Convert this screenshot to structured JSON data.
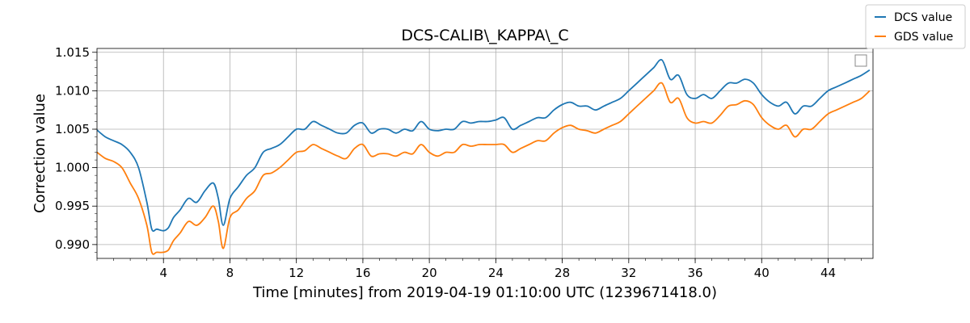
{
  "chart_data": {
    "type": "line",
    "title": "DCS-CALIB\\_KAPPA\\_C",
    "xlabel": "Time [minutes] from 2019-04-19 01:10:00 UTC (1239671418.0)",
    "ylabel": "Correction value",
    "xlim": [
      0,
      46.7
    ],
    "ylim": [
      0.9882,
      1.0155
    ],
    "xticks": [
      4,
      8,
      12,
      16,
      20,
      24,
      28,
      32,
      36,
      40,
      44
    ],
    "yticks": [
      0.99,
      0.995,
      1.0,
      1.005,
      1.01,
      1.015
    ],
    "ytick_labels": [
      "0.990",
      "0.995",
      "1.000",
      "1.005",
      "1.010",
      "1.015"
    ],
    "grid": true,
    "legend_position": "top-right (outside axes)",
    "x": [
      0,
      0.5,
      1,
      1.5,
      2,
      2.5,
      3,
      3.3,
      3.6,
      4,
      4.3,
      4.6,
      5,
      5.5,
      6,
      6.5,
      7,
      7.3,
      7.6,
      8,
      8.5,
      9,
      9.5,
      10,
      10.5,
      11,
      11.5,
      12,
      12.5,
      13,
      13.5,
      14,
      14.5,
      15,
      15.5,
      16,
      16.5,
      17,
      17.5,
      18,
      18.5,
      19,
      19.5,
      20,
      20.5,
      21,
      21.5,
      22,
      22.5,
      23,
      23.5,
      24,
      24.5,
      25,
      25.5,
      26,
      26.5,
      27,
      27.5,
      28,
      28.5,
      29,
      29.5,
      30,
      30.5,
      31,
      31.5,
      32,
      32.5,
      33,
      33.5,
      34,
      34.5,
      35,
      35.5,
      36,
      36.5,
      37,
      37.5,
      38,
      38.5,
      39,
      39.5,
      40,
      40.5,
      41,
      41.5,
      42,
      42.5,
      43,
      43.5,
      44,
      44.5,
      45,
      45.5,
      46,
      46.5
    ],
    "series": [
      {
        "name": "DCS value",
        "color": "#1f77b4",
        "values": [
          1.0049,
          1.004,
          1.0035,
          1.003,
          1.002,
          1.0,
          0.9955,
          0.992,
          0.992,
          0.9918,
          0.9922,
          0.9935,
          0.9945,
          0.996,
          0.9955,
          0.997,
          0.998,
          0.996,
          0.9925,
          0.996,
          0.9975,
          0.999,
          1.0,
          1.002,
          1.0025,
          1.003,
          1.004,
          1.005,
          1.005,
          1.006,
          1.0055,
          1.005,
          1.0045,
          1.0045,
          1.0055,
          1.0058,
          1.0045,
          1.005,
          1.005,
          1.0045,
          1.005,
          1.0048,
          1.006,
          1.005,
          1.0048,
          1.005,
          1.005,
          1.006,
          1.0058,
          1.006,
          1.006,
          1.0062,
          1.0065,
          1.005,
          1.0055,
          1.006,
          1.0065,
          1.0065,
          1.0075,
          1.0082,
          1.0085,
          1.008,
          1.008,
          1.0075,
          1.008,
          1.0085,
          1.009,
          1.01,
          1.011,
          1.012,
          1.013,
          1.014,
          1.0115,
          1.012,
          1.0095,
          1.009,
          1.0095,
          1.009,
          1.01,
          1.011,
          1.011,
          1.0115,
          1.011,
          1.0095,
          1.0085,
          1.008,
          1.0085,
          1.007,
          1.008,
          1.008,
          1.009,
          1.01,
          1.0105,
          1.011,
          1.0115,
          1.012,
          1.0127
        ]
      },
      {
        "name": "GDS value",
        "color": "#ff7f0e",
        "values": [
          1.002,
          1.0012,
          1.0008,
          1.0,
          0.998,
          0.996,
          0.9925,
          0.989,
          0.989,
          0.989,
          0.9893,
          0.9905,
          0.9915,
          0.993,
          0.9925,
          0.9935,
          0.995,
          0.993,
          0.9895,
          0.9935,
          0.9945,
          0.996,
          0.997,
          0.999,
          0.9993,
          1.0,
          1.001,
          1.002,
          1.0022,
          1.003,
          1.0025,
          1.002,
          1.0015,
          1.0012,
          1.0025,
          1.003,
          1.0015,
          1.0018,
          1.0018,
          1.0015,
          1.002,
          1.0018,
          1.003,
          1.002,
          1.0015,
          1.002,
          1.002,
          1.003,
          1.0028,
          1.003,
          1.003,
          1.003,
          1.003,
          1.002,
          1.0025,
          1.003,
          1.0035,
          1.0035,
          1.0045,
          1.0052,
          1.0055,
          1.005,
          1.0048,
          1.0045,
          1.005,
          1.0055,
          1.006,
          1.007,
          1.008,
          1.009,
          1.01,
          1.011,
          1.0085,
          1.009,
          1.0065,
          1.0058,
          1.006,
          1.0058,
          1.0068,
          1.008,
          1.0082,
          1.0087,
          1.0082,
          1.0065,
          1.0055,
          1.005,
          1.0055,
          1.004,
          1.005,
          1.005,
          1.006,
          1.007,
          1.0075,
          1.008,
          1.0085,
          1.009,
          1.01
        ]
      }
    ]
  }
}
